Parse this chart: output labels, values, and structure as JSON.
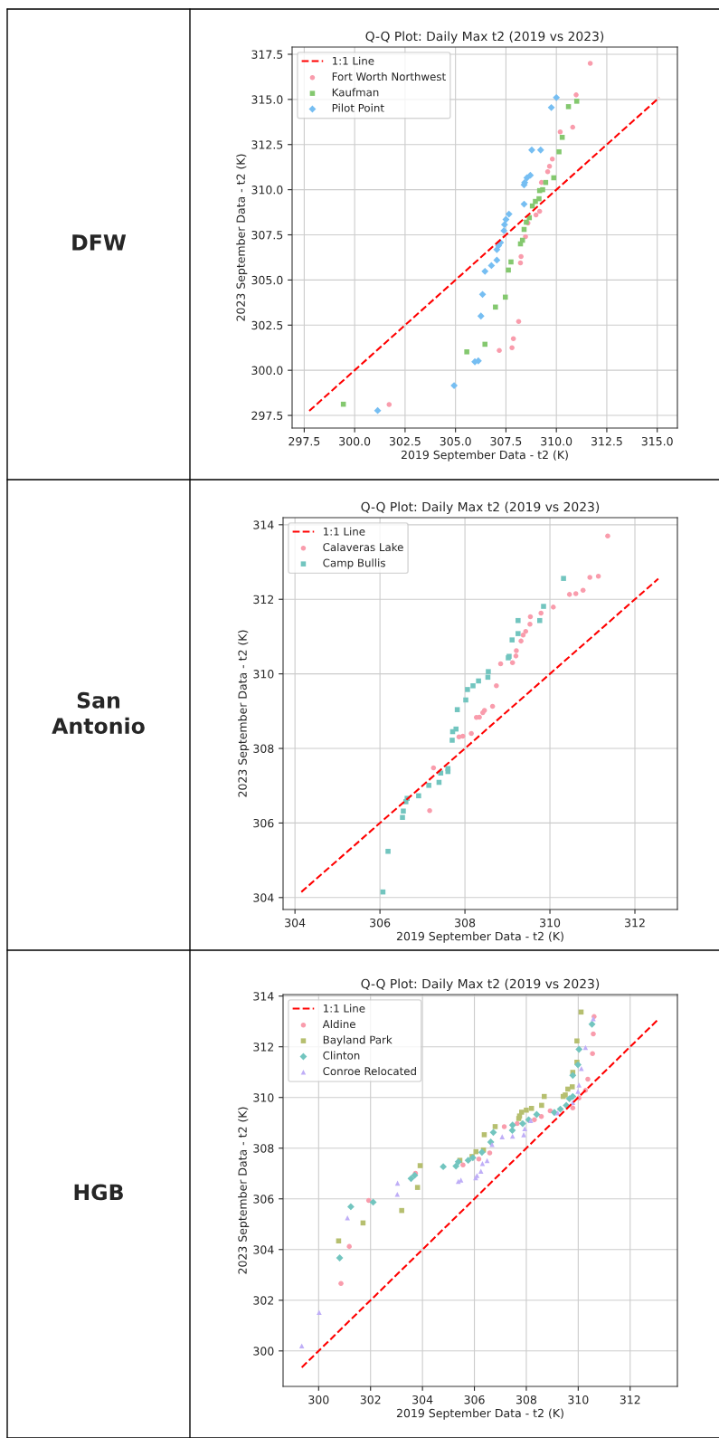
{
  "chart_data": [
    {
      "type": "scatter",
      "title": "Q-Q Plot: Daily Max t2 (2019 vs 2023)",
      "xlabel": "2019 September Data - t2 (K)",
      "ylabel": "2023 September Data - t2 (K)",
      "annotations": [
        "DFW"
      ],
      "xlim": [
        296.9,
        316.0
      ],
      "ylim": [
        296.8,
        317.9
      ],
      "xticks": [
        297.5,
        {
          "value": 300,
          "label": "300.0"
        },
        302.5,
        {
          "value": 305,
          "label": "305.0"
        },
        307.5,
        {
          "value": 310,
          "label": "310.0"
        },
        312.5,
        {
          "value": 315,
          "label": "315.0"
        }
      ],
      "yticks": [
        297.5,
        {
          "value": 300,
          "label": "300.0"
        },
        302.5,
        {
          "value": 305,
          "label": "305.0"
        },
        307.5,
        {
          "value": 310,
          "label": "310.0"
        },
        312.5,
        {
          "value": 315,
          "label": "315.0"
        },
        317.5
      ],
      "grid": true,
      "legend": "top left",
      "series": [
        {
          "name": "1:1 Line",
          "type": "line",
          "color": "#ff0000",
          "line_style": "dashed",
          "marker": "none",
          "x": [
            297.75,
            315.1
          ],
          "values": [
            297.75,
            315.1
          ]
        },
        {
          "name": "Fort Worth Northwest",
          "color": "#f99cac",
          "marker": "circle",
          "x": [
            311.68,
            310.98,
            310.81,
            310.19,
            309.8,
            309.66,
            309.57,
            309.26,
            309.17,
            308.99,
            308.59,
            308.47,
            308.25,
            308.22,
            308.13,
            307.87,
            307.8,
            307.17,
            301.71
          ],
          "values": [
            317.0,
            315.25,
            313.46,
            313.2,
            311.7,
            311.3,
            311.0,
            310.4,
            308.8,
            308.6,
            308.15,
            307.4,
            306.3,
            305.95,
            302.7,
            301.75,
            301.25,
            301.1,
            298.1
          ]
        },
        {
          "name": "Kaufman",
          "color": "#84c86f",
          "marker": "square",
          "x": [
            311.01,
            310.6,
            310.29,
            310.13,
            309.87,
            309.47,
            309.32,
            309.17,
            309.14,
            308.96,
            308.81,
            308.66,
            308.51,
            308.4,
            308.32,
            308.22,
            307.75,
            307.62,
            307.47,
            306.98,
            306.46,
            305.56,
            299.44
          ],
          "values": [
            314.9,
            314.6,
            312.9,
            312.1,
            310.66,
            310.4,
            310.0,
            309.95,
            309.5,
            309.35,
            309.1,
            308.45,
            308.2,
            307.8,
            307.2,
            307.0,
            306.0,
            305.55,
            304.05,
            303.5,
            301.44,
            301.02,
            298.12
          ]
        },
        {
          "name": "Pilot Point",
          "color": "#76bef2",
          "marker": "diamond",
          "x": [
            310.0,
            309.75,
            309.22,
            308.78,
            308.71,
            308.54,
            308.43,
            308.4,
            308.4,
            307.65,
            307.5,
            307.43,
            307.4,
            307.23,
            307.13,
            307.05,
            307.05,
            306.78,
            306.46,
            306.34,
            306.26,
            306.13,
            305.96,
            304.93,
            301.14
          ],
          "values": [
            315.1,
            314.55,
            312.2,
            312.2,
            310.8,
            310.66,
            310.4,
            310.27,
            309.2,
            308.65,
            308.35,
            308.07,
            307.73,
            307.07,
            306.9,
            306.68,
            306.1,
            305.8,
            305.48,
            304.2,
            303.0,
            300.52,
            300.47,
            299.15,
            297.77
          ]
        }
      ]
    },
    {
      "type": "scatter",
      "title": "Q-Q Plot: Daily Max t2 (2019 vs 2023)",
      "xlabel": "2019 September Data - t2 (K)",
      "ylabel": "2023 September Data - t2 (K)",
      "annotations": [
        "San Antonio"
      ],
      "xlim": [
        303.72,
        313.0
      ],
      "ylim": [
        303.68,
        314.19
      ],
      "xticks": [
        304,
        306,
        308,
        310,
        312
      ],
      "yticks": [
        304,
        306,
        308,
        310,
        312,
        314
      ],
      "grid": true,
      "legend": "top left",
      "series": [
        {
          "name": "1:1 Line",
          "type": "line",
          "color": "#ff0000",
          "line_style": "dashed",
          "marker": "none",
          "x": [
            304.15,
            312.55
          ],
          "values": [
            304.15,
            312.55
          ]
        },
        {
          "name": "Calaveras Lake",
          "color": "#f99cac",
          "marker": "circle",
          "x": [
            311.36,
            311.14,
            310.94,
            310.78,
            310.61,
            310.46,
            310.08,
            309.79,
            309.54,
            309.53,
            309.43,
            309.37,
            309.32,
            309.21,
            309.2,
            309.12,
            308.84,
            308.74,
            308.65,
            308.46,
            308.42,
            308.34,
            308.27,
            308.15,
            307.95,
            307.86,
            307.26,
            307.17
          ],
          "values": [
            313.7,
            312.62,
            312.59,
            312.24,
            312.15,
            312.13,
            311.79,
            311.63,
            311.53,
            311.33,
            311.14,
            311.04,
            310.88,
            310.62,
            310.48,
            310.3,
            310.27,
            309.68,
            309.13,
            309.02,
            308.96,
            308.84,
            308.83,
            308.4,
            308.33,
            308.31,
            307.48,
            306.33
          ]
        },
        {
          "name": "Camp Bullis",
          "color": "#72c5bf",
          "marker": "square",
          "x": [
            310.32,
            309.85,
            309.76,
            309.25,
            309.25,
            309.11,
            309.04,
            309.02,
            308.55,
            308.54,
            308.32,
            308.19,
            308.06,
            308.02,
            307.82,
            307.79,
            307.71,
            307.7,
            307.6,
            307.6,
            307.43,
            307.39,
            307.15,
            306.91,
            306.64,
            306.61,
            306.55,
            306.53,
            306.19,
            306.07
          ],
          "values": [
            312.56,
            311.81,
            311.43,
            311.43,
            311.08,
            310.91,
            310.47,
            310.43,
            310.06,
            309.91,
            309.81,
            309.68,
            309.58,
            309.3,
            309.04,
            308.52,
            308.45,
            308.22,
            307.46,
            307.38,
            307.34,
            307.09,
            307.01,
            306.73,
            306.66,
            306.57,
            306.32,
            306.15,
            305.24,
            304.15
          ]
        }
      ]
    },
    {
      "type": "scatter",
      "title": "Q-Q Plot: Daily Max t2 (2019 vs 2023)",
      "xlabel": "2019 September Data - t2 (K)",
      "ylabel": "2023 September Data - t2 (K)",
      "annotations": [
        "HGB"
      ],
      "xlim": [
        298.63,
        313.82
      ],
      "ylim": [
        298.6,
        314.06
      ],
      "xticks": [
        300,
        302,
        304,
        306,
        308,
        310,
        312
      ],
      "yticks": [
        300,
        302,
        304,
        306,
        308,
        310,
        312,
        314
      ],
      "grid": true,
      "legend": "top left",
      "series": [
        {
          "name": "1:1 Line",
          "type": "line",
          "color": "#ff0000",
          "line_style": "dashed",
          "marker": "none",
          "x": [
            299.35,
            313.1
          ],
          "values": [
            299.35,
            313.1
          ]
        },
        {
          "name": "Aldine",
          "color": "#f99cac",
          "marker": "circle",
          "x": [
            310.61,
            310.58,
            310.55,
            310.37,
            310.28,
            310.03,
            309.79,
            308.92,
            308.58,
            308.31,
            307.65,
            307.15,
            306.59,
            306.17,
            305.56,
            303.73,
            301.93,
            301.18,
            300.86
          ],
          "values": [
            313.19,
            312.51,
            311.73,
            310.72,
            310.28,
            309.98,
            309.59,
            309.47,
            309.25,
            309.12,
            308.97,
            308.85,
            307.81,
            307.57,
            307.34,
            307.01,
            305.94,
            304.12,
            302.66
          ]
        },
        {
          "name": "Bayland Park",
          "color": "#b6bf6f",
          "marker": "square",
          "x": [
            310.11,
            309.95,
            309.95,
            309.79,
            309.77,
            309.6,
            309.5,
            309.42,
            308.69,
            308.59,
            308.2,
            308.0,
            307.82,
            307.74,
            307.71,
            306.8,
            306.38,
            306.35,
            306.06,
            305.91,
            305.44,
            303.91,
            303.81,
            303.2,
            301.71,
            300.77
          ],
          "values": [
            313.37,
            312.23,
            311.39,
            310.99,
            310.42,
            310.33,
            310.1,
            310.04,
            310.04,
            309.69,
            309.57,
            309.5,
            309.42,
            309.27,
            309.17,
            308.85,
            308.53,
            307.93,
            307.86,
            307.67,
            307.52,
            307.31,
            306.45,
            305.54,
            305.05,
            304.34
          ]
        },
        {
          "name": "Clinton",
          "color": "#72c5bf",
          "marker": "diamond",
          "x": [
            310.53,
            310.03,
            309.99,
            309.79,
            309.79,
            309.66,
            309.54,
            309.31,
            309.08,
            308.4,
            308.09,
            307.86,
            307.47,
            307.46,
            306.73,
            306.63,
            306.29,
            305.94,
            305.76,
            305.38,
            305.29,
            304.8,
            303.7,
            303.56,
            302.1,
            301.24,
            300.81
          ],
          "values": [
            312.89,
            311.9,
            311.29,
            310.87,
            310.04,
            309.95,
            309.69,
            309.54,
            309.41,
            309.33,
            309.12,
            308.97,
            308.91,
            308.7,
            308.62,
            308.24,
            307.84,
            307.62,
            307.52,
            307.46,
            307.29,
            307.27,
            306.93,
            306.8,
            305.87,
            305.69,
            303.67
          ]
        },
        {
          "name": "Conroe Relocated",
          "color": "#bfaef7",
          "marker": "triangle",
          "x": [
            310.58,
            310.28,
            310.12,
            310.03,
            309.99,
            309.79,
            309.21,
            308.17,
            307.94,
            307.9,
            307.47,
            307.07,
            306.68,
            306.49,
            306.31,
            306.25,
            306.1,
            306.05,
            305.48,
            305.38,
            303.04,
            303.03,
            301.11,
            300.02,
            299.35
          ],
          "values": [
            313.11,
            311.97,
            311.14,
            310.49,
            310.24,
            309.8,
            309.39,
            309.09,
            308.77,
            308.53,
            308.47,
            308.45,
            308.14,
            307.51,
            307.39,
            307.09,
            306.92,
            306.83,
            306.74,
            306.69,
            306.62,
            306.18,
            305.25,
            301.52,
            300.2
          ]
        }
      ]
    }
  ]
}
